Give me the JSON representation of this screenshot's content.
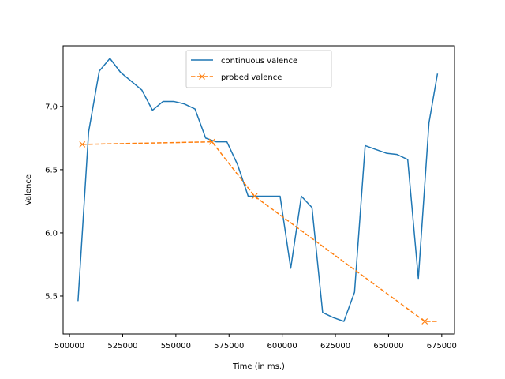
{
  "chart_data": {
    "type": "line",
    "title": "",
    "xlabel": "Time (in ms.)",
    "ylabel": "Valence",
    "xlim": [
      497000,
      681000
    ],
    "ylim": [
      5.2,
      7.48
    ],
    "xticks": [
      500000,
      525000,
      550000,
      575000,
      600000,
      625000,
      650000,
      675000
    ],
    "xtick_labels": [
      "500000",
      "525000",
      "550000",
      "575000",
      "600000",
      "625000",
      "650000",
      "675000"
    ],
    "yticks": [
      5.5,
      6.0,
      6.5,
      7.0
    ],
    "ytick_labels": [
      "5.5",
      "6.0",
      "6.5",
      "7.0"
    ],
    "grid": false,
    "legend_position": "upper center",
    "series": [
      {
        "name": "continuous valence",
        "color": "#1f77b4",
        "style": "solid",
        "marker": "none",
        "x": [
          504000,
          509000,
          514000,
          519000,
          524000,
          529000,
          534000,
          539000,
          544000,
          549000,
          554000,
          559000,
          564000,
          569000,
          574000,
          579000,
          584000,
          589000,
          594000,
          599000,
          604000,
          609000,
          614000,
          619000,
          624000,
          629000,
          634000,
          639000,
          644000,
          649000,
          654000,
          659000,
          664000,
          669000,
          673000
        ],
        "y": [
          5.46,
          6.8,
          7.28,
          7.38,
          7.27,
          7.2,
          7.13,
          6.97,
          7.04,
          7.04,
          7.02,
          6.98,
          6.75,
          6.72,
          6.72,
          6.54,
          6.29,
          6.29,
          6.29,
          6.29,
          5.72,
          6.29,
          6.2,
          5.37,
          5.33,
          5.3,
          5.53,
          6.69,
          6.66,
          6.63,
          6.62,
          6.58,
          5.64,
          6.87,
          7.26
        ]
      },
      {
        "name": "probed valence",
        "color": "#ff7f0e",
        "style": "dashed",
        "marker": "x",
        "x": [
          506000,
          567000,
          587000,
          667000,
          673000
        ],
        "y": [
          6.7,
          6.72,
          6.29,
          5.3,
          5.3
        ],
        "marker_indices": [
          0,
          1,
          2,
          3
        ]
      }
    ]
  }
}
